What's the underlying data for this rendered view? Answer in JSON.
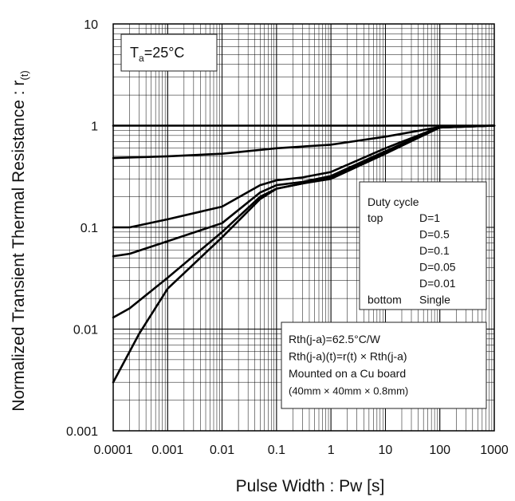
{
  "chart_data": {
    "type": "line",
    "xlabel": "Pulse Width : Pw [s]",
    "ylabel_main": "Normalized Transient Thermal Resistance : r",
    "ylabel_sub": "(t)",
    "x_scale": "log",
    "y_scale": "log",
    "xlim": [
      0.0001,
      1000
    ],
    "ylim": [
      0.001,
      10
    ],
    "x_ticks": [
      "0.0001",
      "0.001",
      "0.01",
      "0.1",
      "1",
      "10",
      "100",
      "1000"
    ],
    "y_ticks": [
      "0.001",
      "0.01",
      "0.1",
      "1",
      "10"
    ],
    "grid": true,
    "condition": {
      "main": "T",
      "sub": "a",
      "rest": "=25°C"
    },
    "legend": {
      "title": "Duty cycle",
      "rows": [
        {
          "prefix": "top",
          "label": "D=1"
        },
        {
          "prefix": "",
          "label": "D=0.5"
        },
        {
          "prefix": "",
          "label": "D=0.1"
        },
        {
          "prefix": "",
          "label": "D=0.05"
        },
        {
          "prefix": "",
          "label": "D=0.01"
        },
        {
          "prefix": "bottom",
          "label": "Single"
        }
      ]
    },
    "notes": [
      "Rth(j-a)=62.5°C/W",
      "Rth(j-a)(t)=r(t) × Rth(j-a)",
      "Mounted on a Cu board",
      "(40mm × 40mm × 0.8mm)"
    ],
    "series": [
      {
        "x": [
          0.0001,
          1000
        ],
        "y": [
          1,
          1
        ]
      },
      {
        "x": [
          0.0001,
          0.001,
          0.01,
          0.1,
          1,
          10,
          100,
          1000
        ],
        "y": [
          0.48,
          0.5,
          0.53,
          0.6,
          0.65,
          0.78,
          0.97,
          1
        ]
      },
      {
        "x": [
          0.0001,
          0.0002,
          0.001,
          0.01,
          0.05,
          0.1,
          0.3,
          1,
          10,
          100,
          1000
        ],
        "y": [
          0.1,
          0.1,
          0.12,
          0.16,
          0.26,
          0.29,
          0.31,
          0.35,
          0.6,
          0.97,
          1
        ]
      },
      {
        "x": [
          0.0001,
          0.0002,
          0.001,
          0.01,
          0.05,
          0.1,
          0.3,
          1,
          10,
          100,
          1000
        ],
        "y": [
          0.052,
          0.055,
          0.073,
          0.11,
          0.22,
          0.26,
          0.28,
          0.32,
          0.56,
          0.96,
          1
        ]
      },
      {
        "x": [
          0.0001,
          0.0002,
          0.001,
          0.01,
          0.05,
          0.1,
          0.3,
          1,
          10,
          100,
          1000
        ],
        "y": [
          0.013,
          0.016,
          0.032,
          0.09,
          0.2,
          0.24,
          0.27,
          0.31,
          0.55,
          0.96,
          1
        ]
      },
      {
        "x": [
          0.0001,
          0.0003,
          0.001,
          0.01,
          0.05,
          0.1,
          0.3,
          1,
          10,
          100,
          1000
        ],
        "y": [
          0.003,
          0.009,
          0.025,
          0.08,
          0.19,
          0.24,
          0.27,
          0.3,
          0.53,
          0.96,
          1
        ]
      }
    ]
  }
}
